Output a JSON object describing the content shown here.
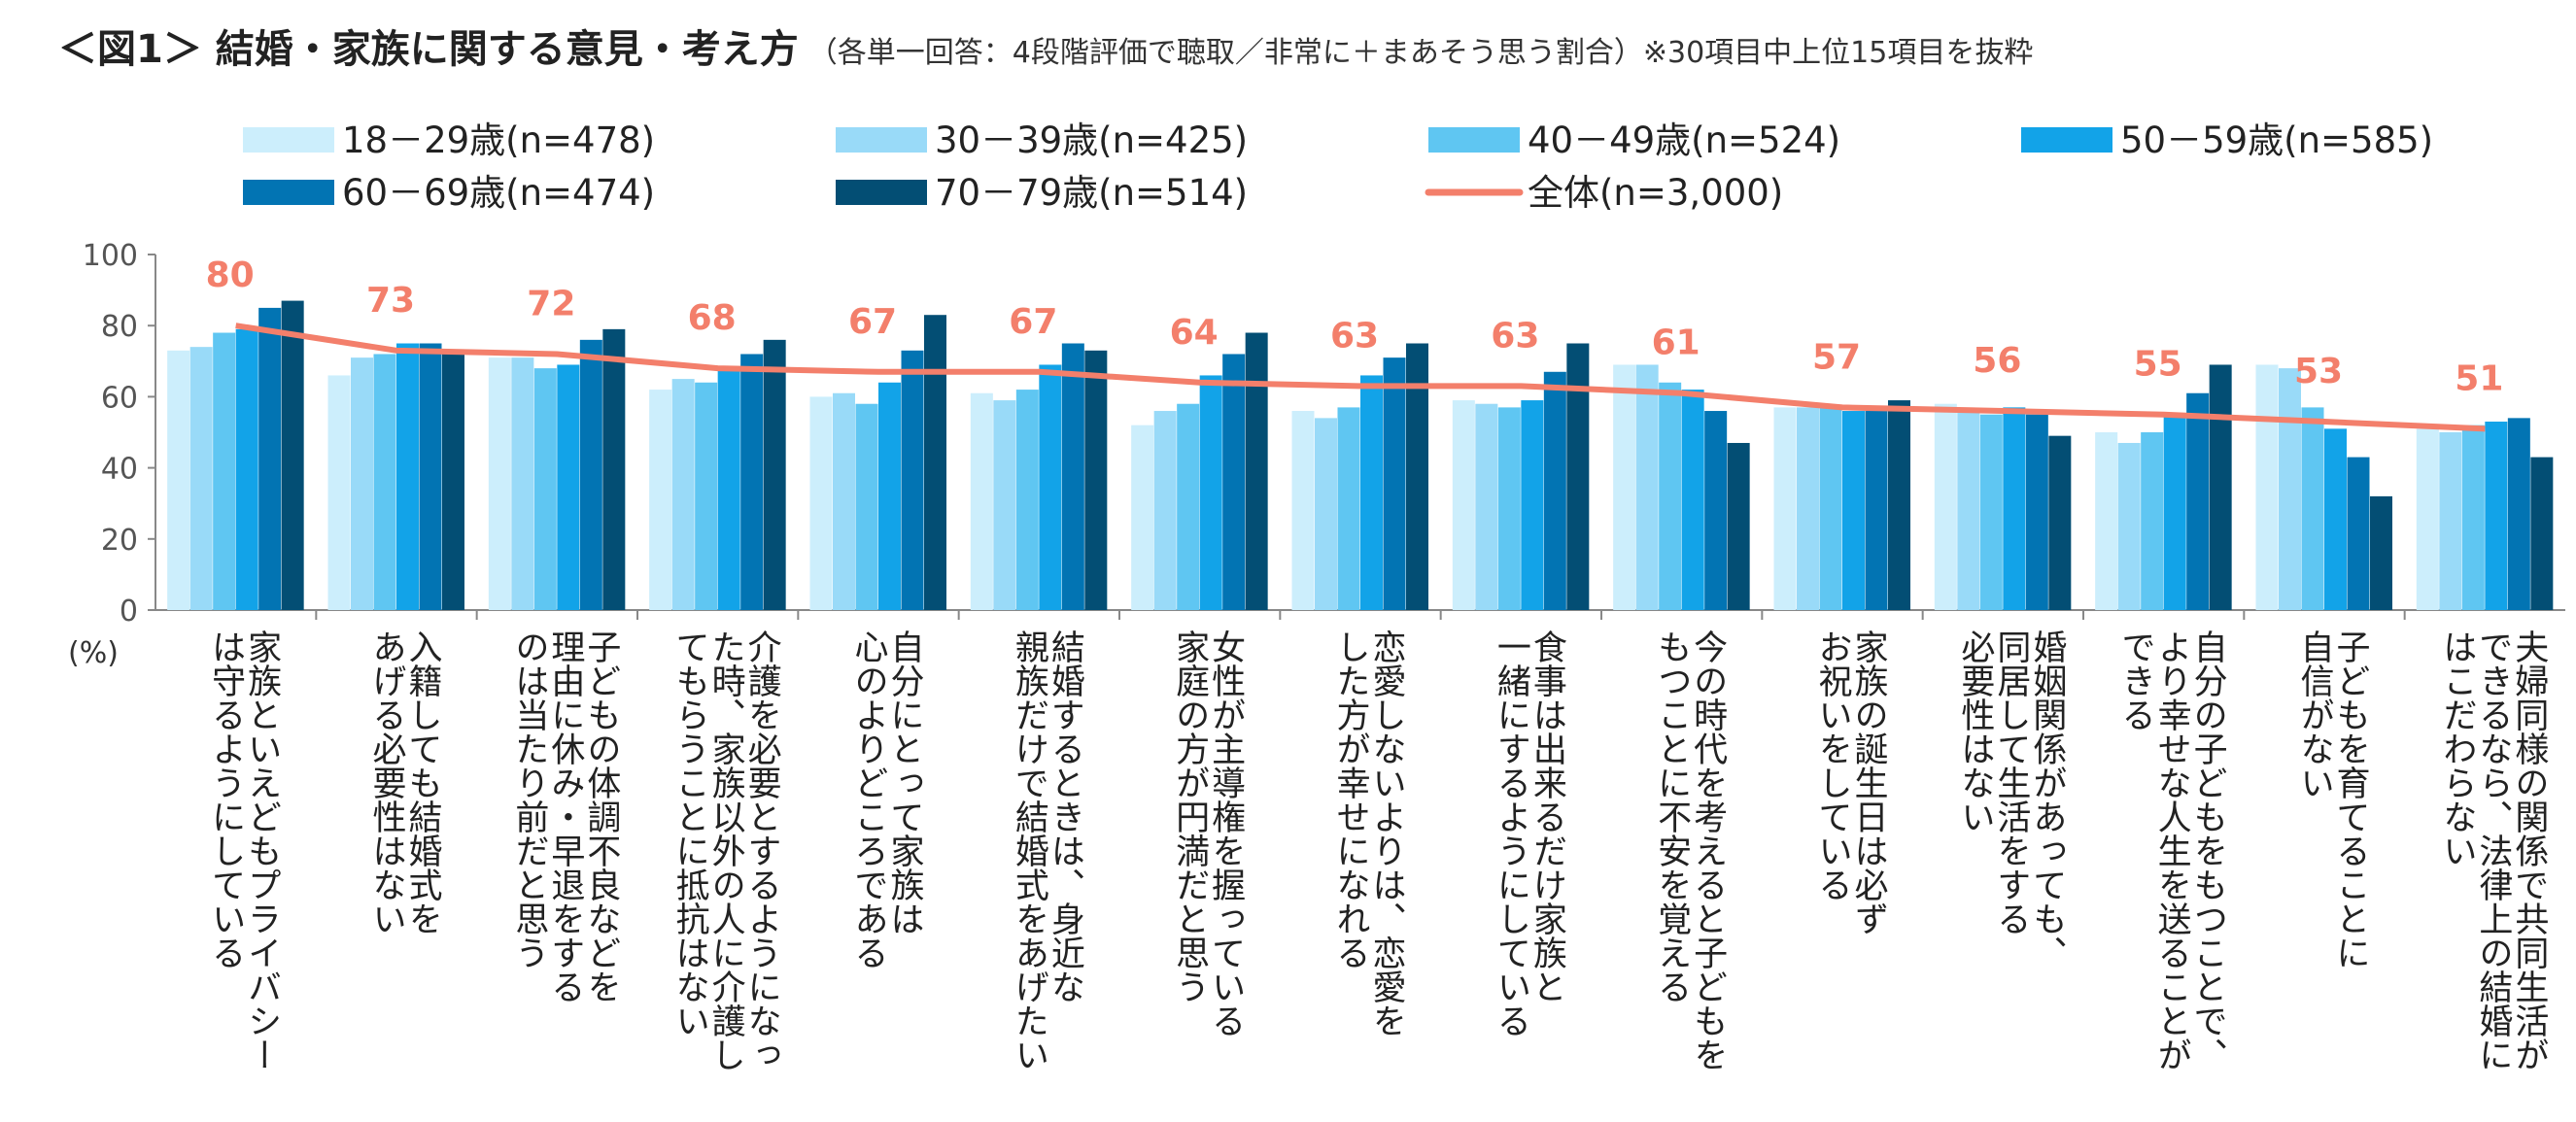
{
  "title": {
    "main": "＜図1＞ 結婚・家族に関する意見・考え方",
    "note": "（各単一回答：4段階評価で聴取／非常に＋まあそう思う割合）※30項目中上位15項目を抜粋"
  },
  "colors": {
    "series": [
      "#CCEEFC",
      "#99DAF8",
      "#5FC6F2",
      "#12A3E8",
      "#0274B3",
      "#034E74"
    ],
    "total_line": "#F37F6B",
    "grid": "#D9D9D9",
    "axis": "#888888"
  },
  "chart_data": {
    "type": "bar",
    "y_unit_label": "(%)",
    "ylim": [
      0,
      100
    ],
    "yticks": [
      0,
      20,
      40,
      60,
      80,
      100
    ],
    "legend_position": "top",
    "grid": false,
    "categories": [
      "家族といえどもプライバシーは守るようにしている",
      "入籍しても結婚式をあげる必要性はない",
      "子どもの体調不良などを理由に休み・早退をするのは当たり前だと思う",
      "介護を必要とするようになった時、家族以外の人に介護してもらうことに抵抗はない",
      "自分にとって家族は心のよりどころである",
      "結婚するときは、身近な親族だけで結婚式をあげたい",
      "女性が主導権を握っている家庭の方が円満だと思う",
      "恋愛しないよりは、恋愛をした方が幸せになれる",
      "食事は出来るだけ家族と一緒にするようにしている",
      "今の時代を考えると子どもをもつことに不安を覚える",
      "家族の誕生日は必ずお祝いをしている",
      "婚姻関係があっても、同居して生活をする必要性はない",
      "自分の子どもをもつことで、より幸せな人生を送ることができる",
      "子どもを育てることに自信がない",
      "夫婦同様の関係で共同生活ができるなら、法律上の結婚にはこだわらない"
    ],
    "category_lines": [
      [
        "家族といえどもプライバシー",
        "は守るようにしている"
      ],
      [
        "入籍しても結婚式を",
        "あげる必要性はない"
      ],
      [
        "子どもの体調不良などを",
        "理由に休み・早退をする",
        "のは当たり前だと思う"
      ],
      [
        "介護を必要とするようになっ",
        "た時、家族以外の人に介護し",
        "てもらうことに抵抗はない"
      ],
      [
        "自分にとって家族は",
        "心のよりどころである"
      ],
      [
        "結婚するときは、身近な",
        "親族だけで結婚式をあげたい"
      ],
      [
        "女性が主導権を握っている",
        "家庭の方が円満だと思う"
      ],
      [
        "恋愛しないよりは、恋愛を",
        "した方が幸せになれる"
      ],
      [
        "食事は出来るだけ家族と",
        "一緒にするようにしている"
      ],
      [
        "今の時代を考えると子どもを",
        "もつことに不安を覚える"
      ],
      [
        "家族の誕生日は必ず",
        "お祝いをしている"
      ],
      [
        "婚姻関係があっても、",
        "同居して生活をする",
        "必要性はない"
      ],
      [
        "自分の子どもをもつことで、",
        "より幸せな人生を送ることが",
        "できる"
      ],
      [
        "子どもを育てることに",
        "自信がない"
      ],
      [
        "夫婦同様の関係で共同生活が",
        "できるなら、法律上の結婚に",
        "はこだわらない"
      ]
    ],
    "series": [
      {
        "name": "18－29歳(n=478)",
        "values": [
          73,
          66,
          71,
          62,
          60,
          61,
          52,
          56,
          59,
          69,
          57,
          58,
          50,
          69,
          51
        ]
      },
      {
        "name": "30－39歳(n=425)",
        "values": [
          74,
          71,
          71,
          65,
          61,
          59,
          56,
          54,
          58,
          69,
          57,
          56,
          47,
          68,
          50
        ]
      },
      {
        "name": "40－49歳(n=524)",
        "values": [
          78,
          72,
          68,
          64,
          58,
          62,
          58,
          57,
          57,
          64,
          57,
          55,
          50,
          57,
          52
        ]
      },
      {
        "name": "50－59歳(n=585)",
        "values": [
          79,
          75,
          69,
          68,
          64,
          69,
          66,
          66,
          59,
          62,
          56,
          57,
          55,
          51,
          53
        ]
      },
      {
        "name": "60－69歳(n=474)",
        "values": [
          85,
          75,
          76,
          72,
          73,
          75,
          72,
          71,
          67,
          56,
          56,
          55,
          61,
          43,
          54
        ]
      },
      {
        "name": "70－79歳(n=514)",
        "values": [
          87,
          73,
          79,
          76,
          83,
          73,
          78,
          75,
          75,
          47,
          59,
          49,
          69,
          32,
          43
        ]
      }
    ],
    "total": {
      "name": "全体(n=3,000)",
      "values": [
        80,
        73,
        72,
        68,
        67,
        67,
        64,
        63,
        63,
        61,
        57,
        56,
        55,
        53,
        51
      ]
    }
  }
}
